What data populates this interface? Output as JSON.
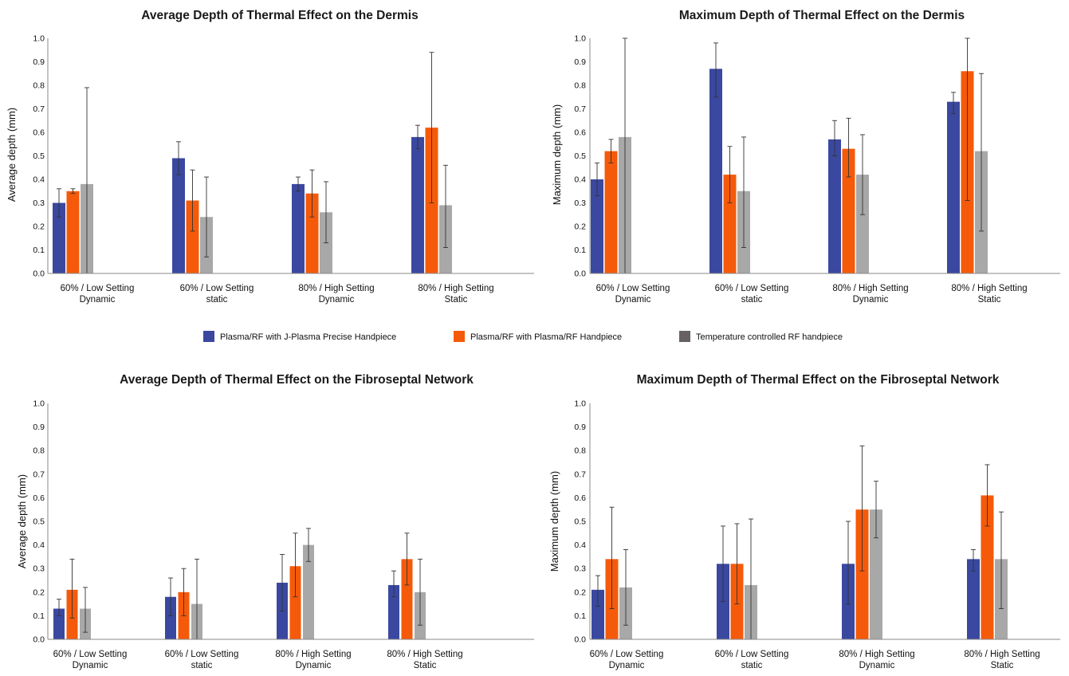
{
  "legend": {
    "items": [
      {
        "label": "Plasma/RF with J-Plasma Precise Handpiece",
        "color": "#3a48a0"
      },
      {
        "label": "Plasma/RF with Plasma/RF Handpiece",
        "color": "#f55a0a"
      },
      {
        "label": "Temperature controlled RF handpiece",
        "color": "#676163"
      }
    ]
  },
  "chart_data": [
    {
      "type": "bar",
      "title": "Average Depth of Thermal Effect on the Dermis",
      "ylabel": "Average depth (mm)",
      "xlabel": "",
      "ylim": [
        0,
        1.0
      ],
      "yticks": [
        "0.0",
        "0.1",
        "0.2",
        "0.3",
        "0.4",
        "0.5",
        "0.6",
        "0.7",
        "0.8",
        "0.9",
        "1.0"
      ],
      "categories": [
        [
          "60% / Low Setting",
          "Dynamic"
        ],
        [
          "60% / Low Setting",
          "static"
        ],
        [
          "80% / High Setting",
          "Dynamic"
        ],
        [
          "80% / High Setting",
          "Static"
        ]
      ],
      "series": [
        {
          "name": "Plasma/RF with J-Plasma Precise Handpiece",
          "color": "#3a48a0",
          "values": [
            0.3,
            0.49,
            0.38,
            0.58
          ],
          "error_low": [
            0.24,
            0.42,
            0.35,
            0.53
          ],
          "error_high": [
            0.36,
            0.56,
            0.41,
            0.63
          ]
        },
        {
          "name": "Plasma/RF with Plasma/RF Handpiece",
          "color": "#f55a0a",
          "values": [
            0.35,
            0.31,
            0.34,
            0.62
          ],
          "error_low": [
            0.34,
            0.18,
            0.24,
            0.3
          ],
          "error_high": [
            0.36,
            0.44,
            0.44,
            0.94
          ]
        },
        {
          "name": "Temperature controlled RF handpiece",
          "color": "#a8a8a8",
          "values": [
            0.38,
            0.24,
            0.26,
            0.29
          ],
          "error_low": [
            -0.02,
            0.07,
            0.13,
            0.11
          ],
          "error_high": [
            0.79,
            0.41,
            0.39,
            0.46
          ]
        }
      ]
    },
    {
      "type": "bar",
      "title": "Maximum Depth of Thermal Effect on the Dermis",
      "ylabel": "Maximum depth (mm)",
      "xlabel": "",
      "ylim": [
        0,
        1.0
      ],
      "yticks": [
        "0.0",
        "0.1",
        "0.2",
        "0.3",
        "0.4",
        "0.5",
        "0.6",
        "0.7",
        "0.8",
        "0.9",
        "1.0"
      ],
      "categories": [
        [
          "60% / Low Setting",
          "Dynamic"
        ],
        [
          "60% / Low Setting",
          "static"
        ],
        [
          "80% / High Setting",
          "Dynamic"
        ],
        [
          "80% / High Setting",
          "Static"
        ]
      ],
      "series": [
        {
          "name": "Plasma/RF with J-Plasma Precise Handpiece",
          "color": "#3a48a0",
          "values": [
            0.4,
            0.87,
            0.57,
            0.73
          ],
          "error_low": [
            0.33,
            0.75,
            0.5,
            0.68
          ],
          "error_high": [
            0.47,
            0.98,
            0.65,
            0.77
          ]
        },
        {
          "name": "Plasma/RF with Plasma/RF Handpiece",
          "color": "#f55a0a",
          "values": [
            0.52,
            0.42,
            0.53,
            0.86
          ],
          "error_low": [
            0.47,
            0.3,
            0.41,
            0.31
          ],
          "error_high": [
            0.57,
            0.54,
            0.66,
            1.0
          ]
        },
        {
          "name": "Temperature controlled RF handpiece",
          "color": "#a8a8a8",
          "values": [
            0.58,
            0.35,
            0.42,
            0.52
          ],
          "error_low": [
            0.0,
            0.11,
            0.25,
            0.18
          ],
          "error_high": [
            1.0,
            0.58,
            0.59,
            0.85
          ]
        }
      ]
    },
    {
      "type": "bar",
      "title": "Average Depth of Thermal Effect on the Fibroseptal Network",
      "ylabel": "Average depth (mm)",
      "xlabel": "",
      "ylim": [
        0,
        1.0
      ],
      "yticks": [
        "0.0",
        "0.1",
        "0.2",
        "0.3",
        "0.4",
        "0.5",
        "0.6",
        "0.7",
        "0.8",
        "0.9",
        "1.0"
      ],
      "categories": [
        [
          "60% / Low Setting",
          "Dynamic"
        ],
        [
          "60% / Low Setting",
          "static"
        ],
        [
          "80% / High Setting",
          "Dynamic"
        ],
        [
          "80% / High Setting",
          "Static"
        ]
      ],
      "series": [
        {
          "name": "Plasma/RF with J-Plasma Precise Handpiece",
          "color": "#3a48a0",
          "values": [
            0.13,
            0.18,
            0.24,
            0.23
          ],
          "error_low": [
            0.1,
            0.1,
            0.12,
            0.18
          ],
          "error_high": [
            0.17,
            0.26,
            0.36,
            0.29
          ]
        },
        {
          "name": "Plasma/RF with Plasma/RF Handpiece",
          "color": "#f55a0a",
          "values": [
            0.21,
            0.2,
            0.31,
            0.34
          ],
          "error_low": [
            0.09,
            0.1,
            0.18,
            0.23
          ],
          "error_high": [
            0.34,
            0.3,
            0.45,
            0.45
          ]
        },
        {
          "name": "Temperature controlled RF handpiece",
          "color": "#a8a8a8",
          "values": [
            0.13,
            0.15,
            0.4,
            0.2
          ],
          "error_low": [
            0.03,
            -0.03,
            0.33,
            0.06
          ],
          "error_high": [
            0.22,
            0.34,
            0.47,
            0.34
          ]
        }
      ]
    },
    {
      "type": "bar",
      "title": "Maximum Depth of Thermal Effect on the Fibroseptal Network",
      "ylabel": "Maximum depth (mm)",
      "xlabel": "",
      "ylim": [
        0,
        1.0
      ],
      "yticks": [
        "0.0",
        "0.1",
        "0.2",
        "0.3",
        "0.4",
        "0.5",
        "0.6",
        "0.7",
        "0.8",
        "0.9",
        "1.0"
      ],
      "categories": [
        [
          "60% / Low Setting",
          "Dynamic"
        ],
        [
          "60% / Low Setting",
          "static"
        ],
        [
          "80% / High Setting",
          "Dynamic"
        ],
        [
          "80% / High Setting",
          "Static"
        ]
      ],
      "series": [
        {
          "name": "Plasma/RF with J-Plasma Precise Handpiece",
          "color": "#3a48a0",
          "values": [
            0.21,
            0.32,
            0.32,
            0.34
          ],
          "error_low": [
            0.14,
            0.16,
            0.15,
            0.29
          ],
          "error_high": [
            0.27,
            0.48,
            0.5,
            0.38
          ]
        },
        {
          "name": "Plasma/RF with Plasma/RF Handpiece",
          "color": "#f55a0a",
          "values": [
            0.34,
            0.32,
            0.55,
            0.61
          ],
          "error_low": [
            0.13,
            0.15,
            0.29,
            0.48
          ],
          "error_high": [
            0.56,
            0.49,
            0.82,
            0.74
          ]
        },
        {
          "name": "Temperature controlled RF handpiece",
          "color": "#a8a8a8",
          "values": [
            0.22,
            0.23,
            0.55,
            0.34
          ],
          "error_low": [
            0.06,
            -0.06,
            0.43,
            0.13
          ],
          "error_high": [
            0.38,
            0.51,
            0.67,
            0.54
          ]
        }
      ]
    }
  ]
}
